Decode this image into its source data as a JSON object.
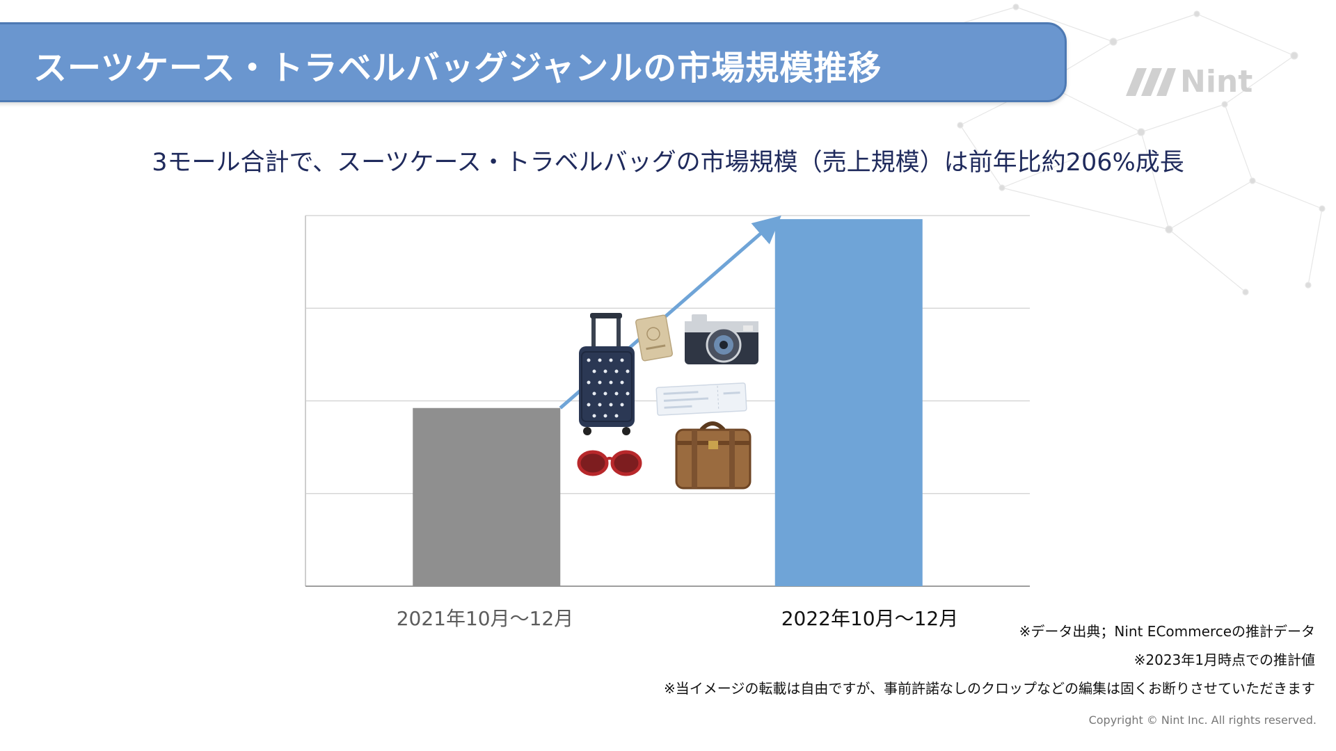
{
  "header": {
    "title": "スーツケース・トラベルバッグジャンルの市場規模推移",
    "logo_text": "Nint"
  },
  "subtitle": "3モール合計で、スーツケース・トラベルバッグの市場規模（売上規模）は前年比約206%成長",
  "chart_data": {
    "type": "bar",
    "categories": [
      "2021年10月〜12月",
      "2022年10月〜12月"
    ],
    "values": [
      1,
      2.06
    ],
    "ylim": [
      0,
      2.08
    ],
    "grid": true,
    "colors": [
      "#8f8f8f",
      "#6fa4d7"
    ],
    "annotations": [
      "growth-arrow"
    ]
  },
  "notes": [
    "※データ出典；Nint ECommerceの推計データ",
    "※2023年1月時点での推計値",
    "※当イメージの転載は自由ですが、事前許諾なしのクロップなどの編集は固くお断りさせていただきます"
  ],
  "copyright": "Copyright © Nint Inc. All rights reserved.",
  "colors": {
    "banner": "#6a96cf",
    "subtitle": "#1f2a5c",
    "arrow": "#6fa4d7"
  },
  "illustrations": [
    "suitcase-icon",
    "passport-icon",
    "camera-icon",
    "ticket-icon",
    "sunglasses-icon",
    "leather-bag-icon"
  ]
}
